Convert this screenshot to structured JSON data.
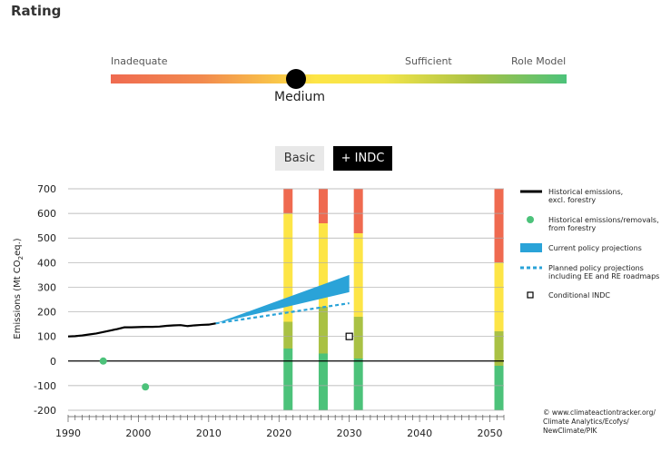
{
  "page": {
    "title": "Rating"
  },
  "rating": {
    "scale_labels": [
      "Inadequate",
      "Sufficient",
      "Role Model"
    ],
    "value": "Medium",
    "colors": [
      "#ef6a50",
      "#fde546",
      "#4cc27a"
    ]
  },
  "tabs": [
    {
      "label": "Basic",
      "active": false
    },
    {
      "label": "+ INDC",
      "active": true
    }
  ],
  "chart_data": {
    "type": "line",
    "ylabel": "Emissions (Mt CO",
    "ylabel_sub": "2",
    "ylabel_tail": "eq.)",
    "xlim": [
      1990,
      2052
    ],
    "ylim": [
      -200,
      700
    ],
    "x_ticks": [
      1990,
      2000,
      2010,
      2020,
      2030,
      2040,
      2050
    ],
    "y_ticks": [
      700,
      600,
      500,
      400,
      300,
      200,
      100,
      0,
      -100,
      -200
    ],
    "grid": true,
    "historical_excl_forestry": {
      "x": [
        1990,
        1991,
        1992,
        1993,
        1994,
        1995,
        1996,
        1997,
        1998,
        1999,
        2000,
        2001,
        2002,
        2003,
        2004,
        2005,
        2006,
        2007,
        2008,
        2009,
        2010,
        2011
      ],
      "y": [
        100,
        101,
        104,
        108,
        112,
        118,
        124,
        130,
        137,
        137,
        138,
        139,
        139,
        140,
        143,
        145,
        146,
        142,
        145,
        147,
        148,
        153
      ],
      "color": "#000000"
    },
    "historical_forestry": {
      "x": [
        1995,
        2001
      ],
      "y": [
        0,
        -105
      ],
      "color": "#4cc27a"
    },
    "current_policy": {
      "x": [
        2011,
        2030
      ],
      "upper": [
        153,
        350
      ],
      "lower": [
        153,
        280
      ],
      "color": "#2aa3d8"
    },
    "planned_policy": {
      "x": [
        2011,
        2030
      ],
      "y": [
        153,
        235
      ],
      "color": "#2aa3d8"
    },
    "conditional_indc": {
      "x": 2030,
      "y": 100
    },
    "rating_bars": [
      {
        "year": 2020,
        "ymax": 700,
        "bands": [
          {
            "color": "#4cc27a",
            "from": -200,
            "to": 50
          },
          {
            "color": "#a9c144",
            "from": 50,
            "to": 160
          },
          {
            "color": "#fde546",
            "from": 160,
            "to": 600
          },
          {
            "color": "#ef6a50",
            "from": 600,
            "to": 700
          }
        ]
      },
      {
        "year": 2025,
        "ymax": 700,
        "bands": [
          {
            "color": "#4cc27a",
            "from": -200,
            "to": 30
          },
          {
            "color": "#a9c144",
            "from": 30,
            "to": 220
          },
          {
            "color": "#fde546",
            "from": 220,
            "to": 560
          },
          {
            "color": "#ef6a50",
            "from": 560,
            "to": 700
          }
        ]
      },
      {
        "year": 2030,
        "ymax": 700,
        "bands": [
          {
            "color": "#4cc27a",
            "from": -200,
            "to": 10
          },
          {
            "color": "#a9c144",
            "from": 10,
            "to": 180
          },
          {
            "color": "#fde546",
            "from": 180,
            "to": 520
          },
          {
            "color": "#ef6a50",
            "from": 520,
            "to": 700
          }
        ]
      },
      {
        "year": 2050,
        "ymax": 700,
        "bands": [
          {
            "color": "#4cc27a",
            "from": -200,
            "to": -20
          },
          {
            "color": "#a9c144",
            "from": -20,
            "to": 120
          },
          {
            "color": "#fde546",
            "from": 120,
            "to": 400
          },
          {
            "color": "#ef6a50",
            "from": 400,
            "to": 700
          }
        ]
      }
    ],
    "legend": [
      {
        "name": "Historical emissions,",
        "name2": "excl. forestry",
        "kind": "line",
        "color": "#000000"
      },
      {
        "name": "Historical emissions/removals,",
        "name2": "from forestry",
        "kind": "dot",
        "color": "#4cc27a"
      },
      {
        "name": "Current policy projections",
        "name2": "",
        "kind": "band",
        "color": "#2aa3d8"
      },
      {
        "name": "Planned policy projections",
        "name2": "including EE and RE roadmaps",
        "kind": "dash",
        "color": "#2aa3d8"
      },
      {
        "name": "Conditional INDC",
        "name2": "",
        "kind": "square",
        "color": "#000000"
      }
    ],
    "credit": [
      "© www.climateactiontracker.org/",
      "Climate Analytics/Ecofys/",
      "NewClimate/PIK"
    ]
  }
}
